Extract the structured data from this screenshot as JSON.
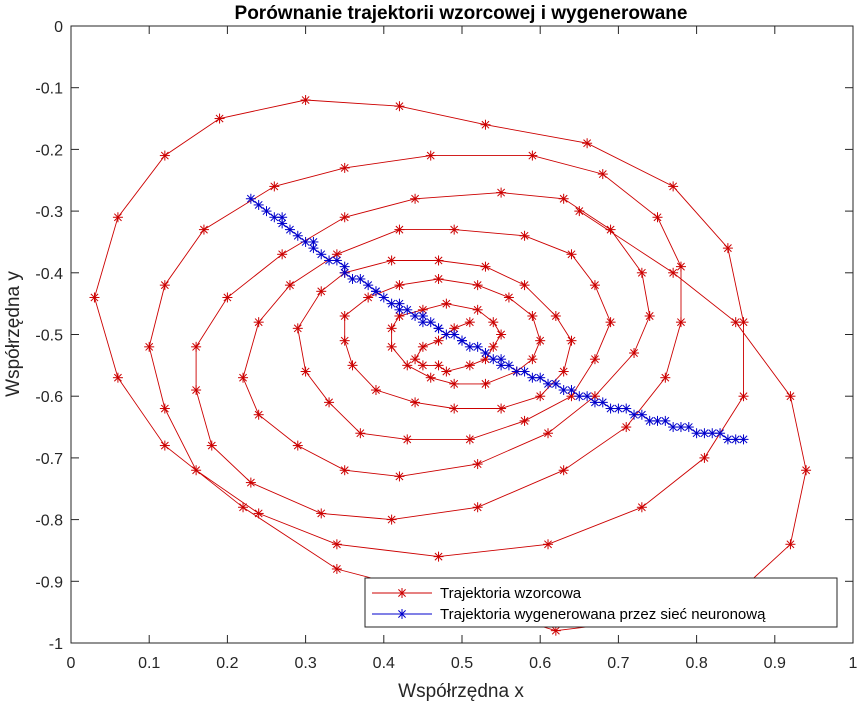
{
  "chart_data": {
    "type": "line",
    "title": "Porównanie trajektorii wzorcowej i wygenerowane",
    "xlabel": "Współrzędna x",
    "ylabel": "Współrzędna y",
    "xlim": [
      0,
      1
    ],
    "ylim": [
      -1,
      0
    ],
    "xticks": [
      0,
      0.1,
      0.2,
      0.3,
      0.4,
      0.5,
      0.6,
      0.7,
      0.8,
      0.9,
      1
    ],
    "xtick_labels": [
      "0",
      "0.1",
      "0.2",
      "0.3",
      "0.4",
      "0.5",
      "0.6",
      "0.7",
      "0.8",
      "0.9",
      "1"
    ],
    "yticks": [
      0,
      -0.1,
      -0.2,
      -0.3,
      -0.4,
      -0.5,
      -0.6,
      -0.7,
      -0.8,
      -0.9,
      -1
    ],
    "ytick_labels": [
      "0",
      "-0.1",
      "-0.2",
      "-0.3",
      "-0.4",
      "-0.5",
      "-0.6",
      "-0.7",
      "-0.8",
      "-0.9",
      "-1"
    ],
    "grid": false,
    "legend_position": "bottom-right",
    "series": [
      {
        "name": "Trajektoria wzorcowa",
        "color": "#cc0000",
        "marker": "asterisk",
        "x": [
          0.51,
          0.49,
          0.47,
          0.45,
          0.44,
          0.45,
          0.47,
          0.48,
          0.51,
          0.53,
          0.54,
          0.55,
          0.54,
          0.52,
          0.48,
          0.45,
          0.42,
          0.41,
          0.41,
          0.43,
          0.46,
          0.49,
          0.53,
          0.57,
          0.59,
          0.6,
          0.59,
          0.56,
          0.52,
          0.47,
          0.42,
          0.38,
          0.35,
          0.35,
          0.36,
          0.39,
          0.44,
          0.49,
          0.55,
          0.6,
          0.63,
          0.64,
          0.62,
          0.58,
          0.53,
          0.47,
          0.41,
          0.35,
          0.32,
          0.29,
          0.3,
          0.33,
          0.37,
          0.43,
          0.51,
          0.58,
          0.64,
          0.67,
          0.69,
          0.67,
          0.64,
          0.58,
          0.49,
          0.42,
          0.34,
          0.28,
          0.24,
          0.22,
          0.24,
          0.29,
          0.35,
          0.42,
          0.52,
          0.61,
          0.67,
          0.72,
          0.74,
          0.73,
          0.69,
          0.63,
          0.55,
          0.44,
          0.35,
          0.27,
          0.2,
          0.16,
          0.16,
          0.18,
          0.23,
          0.32,
          0.41,
          0.52,
          0.63,
          0.71,
          0.76,
          0.78,
          0.78,
          0.75,
          0.68,
          0.59,
          0.46,
          0.35,
          0.26,
          0.17,
          0.12,
          0.1,
          0.12,
          0.16,
          0.24,
          0.34,
          0.47,
          0.61,
          0.73,
          0.81,
          0.86,
          0.86,
          0.84,
          0.77,
          0.66,
          0.53,
          0.42,
          0.3,
          0.19,
          0.12,
          0.06,
          0.03,
          0.06,
          0.12,
          0.22,
          0.34,
          0.49,
          0.62,
          0.75,
          0.86,
          0.92,
          0.94,
          0.92,
          0.85,
          0.77,
          0.65
        ],
        "y": [
          -0.48,
          -0.49,
          -0.51,
          -0.52,
          -0.54,
          -0.55,
          -0.55,
          -0.56,
          -0.55,
          -0.54,
          -0.52,
          -0.5,
          -0.48,
          -0.46,
          -0.45,
          -0.46,
          -0.47,
          -0.49,
          -0.52,
          -0.55,
          -0.57,
          -0.58,
          -0.58,
          -0.56,
          -0.54,
          -0.51,
          -0.47,
          -0.44,
          -0.42,
          -0.41,
          -0.42,
          -0.44,
          -0.47,
          -0.51,
          -0.55,
          -0.59,
          -0.61,
          -0.62,
          -0.62,
          -0.6,
          -0.56,
          -0.51,
          -0.47,
          -0.42,
          -0.39,
          -0.38,
          -0.38,
          -0.4,
          -0.43,
          -0.49,
          -0.56,
          -0.61,
          -0.66,
          -0.67,
          -0.67,
          -0.64,
          -0.6,
          -0.54,
          -0.48,
          -0.42,
          -0.37,
          -0.34,
          -0.33,
          -0.33,
          -0.37,
          -0.42,
          -0.48,
          -0.57,
          -0.63,
          -0.68,
          -0.72,
          -0.73,
          -0.71,
          -0.66,
          -0.6,
          -0.53,
          -0.47,
          -0.4,
          -0.33,
          -0.28,
          -0.27,
          -0.28,
          -0.31,
          -0.37,
          -0.44,
          -0.52,
          -0.59,
          -0.68,
          -0.74,
          -0.79,
          -0.8,
          -0.78,
          -0.72,
          -0.65,
          -0.57,
          -0.48,
          -0.39,
          -0.31,
          -0.24,
          -0.21,
          -0.21,
          -0.23,
          -0.26,
          -0.33,
          -0.42,
          -0.52,
          -0.62,
          -0.72,
          -0.79,
          -0.84,
          -0.86,
          -0.84,
          -0.78,
          -0.7,
          -0.6,
          -0.48,
          -0.36,
          -0.26,
          -0.19,
          -0.16,
          -0.13,
          -0.12,
          -0.15,
          -0.21,
          -0.31,
          -0.44,
          -0.57,
          -0.68,
          -0.78,
          -0.88,
          -0.93,
          -0.98,
          -0.96,
          -0.91,
          -0.84,
          -0.72,
          -0.6,
          -0.48,
          -0.4,
          -0.3
        ]
      },
      {
        "name": "Trajektoria wygenerowana przez sieć neuronową",
        "color": "#0000cc",
        "marker": "asterisk",
        "x": [
          0.23,
          0.24,
          0.25,
          0.26,
          0.27,
          0.27,
          0.28,
          0.29,
          0.3,
          0.31,
          0.31,
          0.32,
          0.33,
          0.34,
          0.35,
          0.35,
          0.36,
          0.37,
          0.38,
          0.39,
          0.39,
          0.4,
          0.41,
          0.42,
          0.42,
          0.43,
          0.44,
          0.45,
          0.45,
          0.46,
          0.47,
          0.47,
          0.48,
          0.49,
          0.5,
          0.5,
          0.51,
          0.52,
          0.53,
          0.54,
          0.55,
          0.55,
          0.56,
          0.57,
          0.58,
          0.59,
          0.6,
          0.61,
          0.62,
          0.63,
          0.64,
          0.65,
          0.66,
          0.67,
          0.68,
          0.69,
          0.7,
          0.71,
          0.72,
          0.73,
          0.74,
          0.75,
          0.76,
          0.77,
          0.78,
          0.79,
          0.8,
          0.81,
          0.82,
          0.83,
          0.84,
          0.85,
          0.86
        ],
        "y": [
          -0.28,
          -0.29,
          -0.3,
          -0.31,
          -0.31,
          -0.32,
          -0.33,
          -0.34,
          -0.35,
          -0.35,
          -0.36,
          -0.37,
          -0.38,
          -0.38,
          -0.39,
          -0.4,
          -0.41,
          -0.41,
          -0.42,
          -0.43,
          -0.43,
          -0.44,
          -0.45,
          -0.45,
          -0.46,
          -0.46,
          -0.47,
          -0.47,
          -0.48,
          -0.48,
          -0.49,
          -0.49,
          -0.5,
          -0.5,
          -0.51,
          -0.51,
          -0.52,
          -0.52,
          -0.53,
          -0.54,
          -0.54,
          -0.55,
          -0.55,
          -0.56,
          -0.56,
          -0.57,
          -0.57,
          -0.58,
          -0.58,
          -0.59,
          -0.59,
          -0.6,
          -0.6,
          -0.61,
          -0.61,
          -0.62,
          -0.62,
          -0.62,
          -0.63,
          -0.63,
          -0.64,
          -0.64,
          -0.64,
          -0.65,
          -0.65,
          -0.65,
          -0.66,
          -0.66,
          -0.66,
          -0.66,
          -0.67,
          -0.67,
          -0.67
        ]
      }
    ]
  }
}
